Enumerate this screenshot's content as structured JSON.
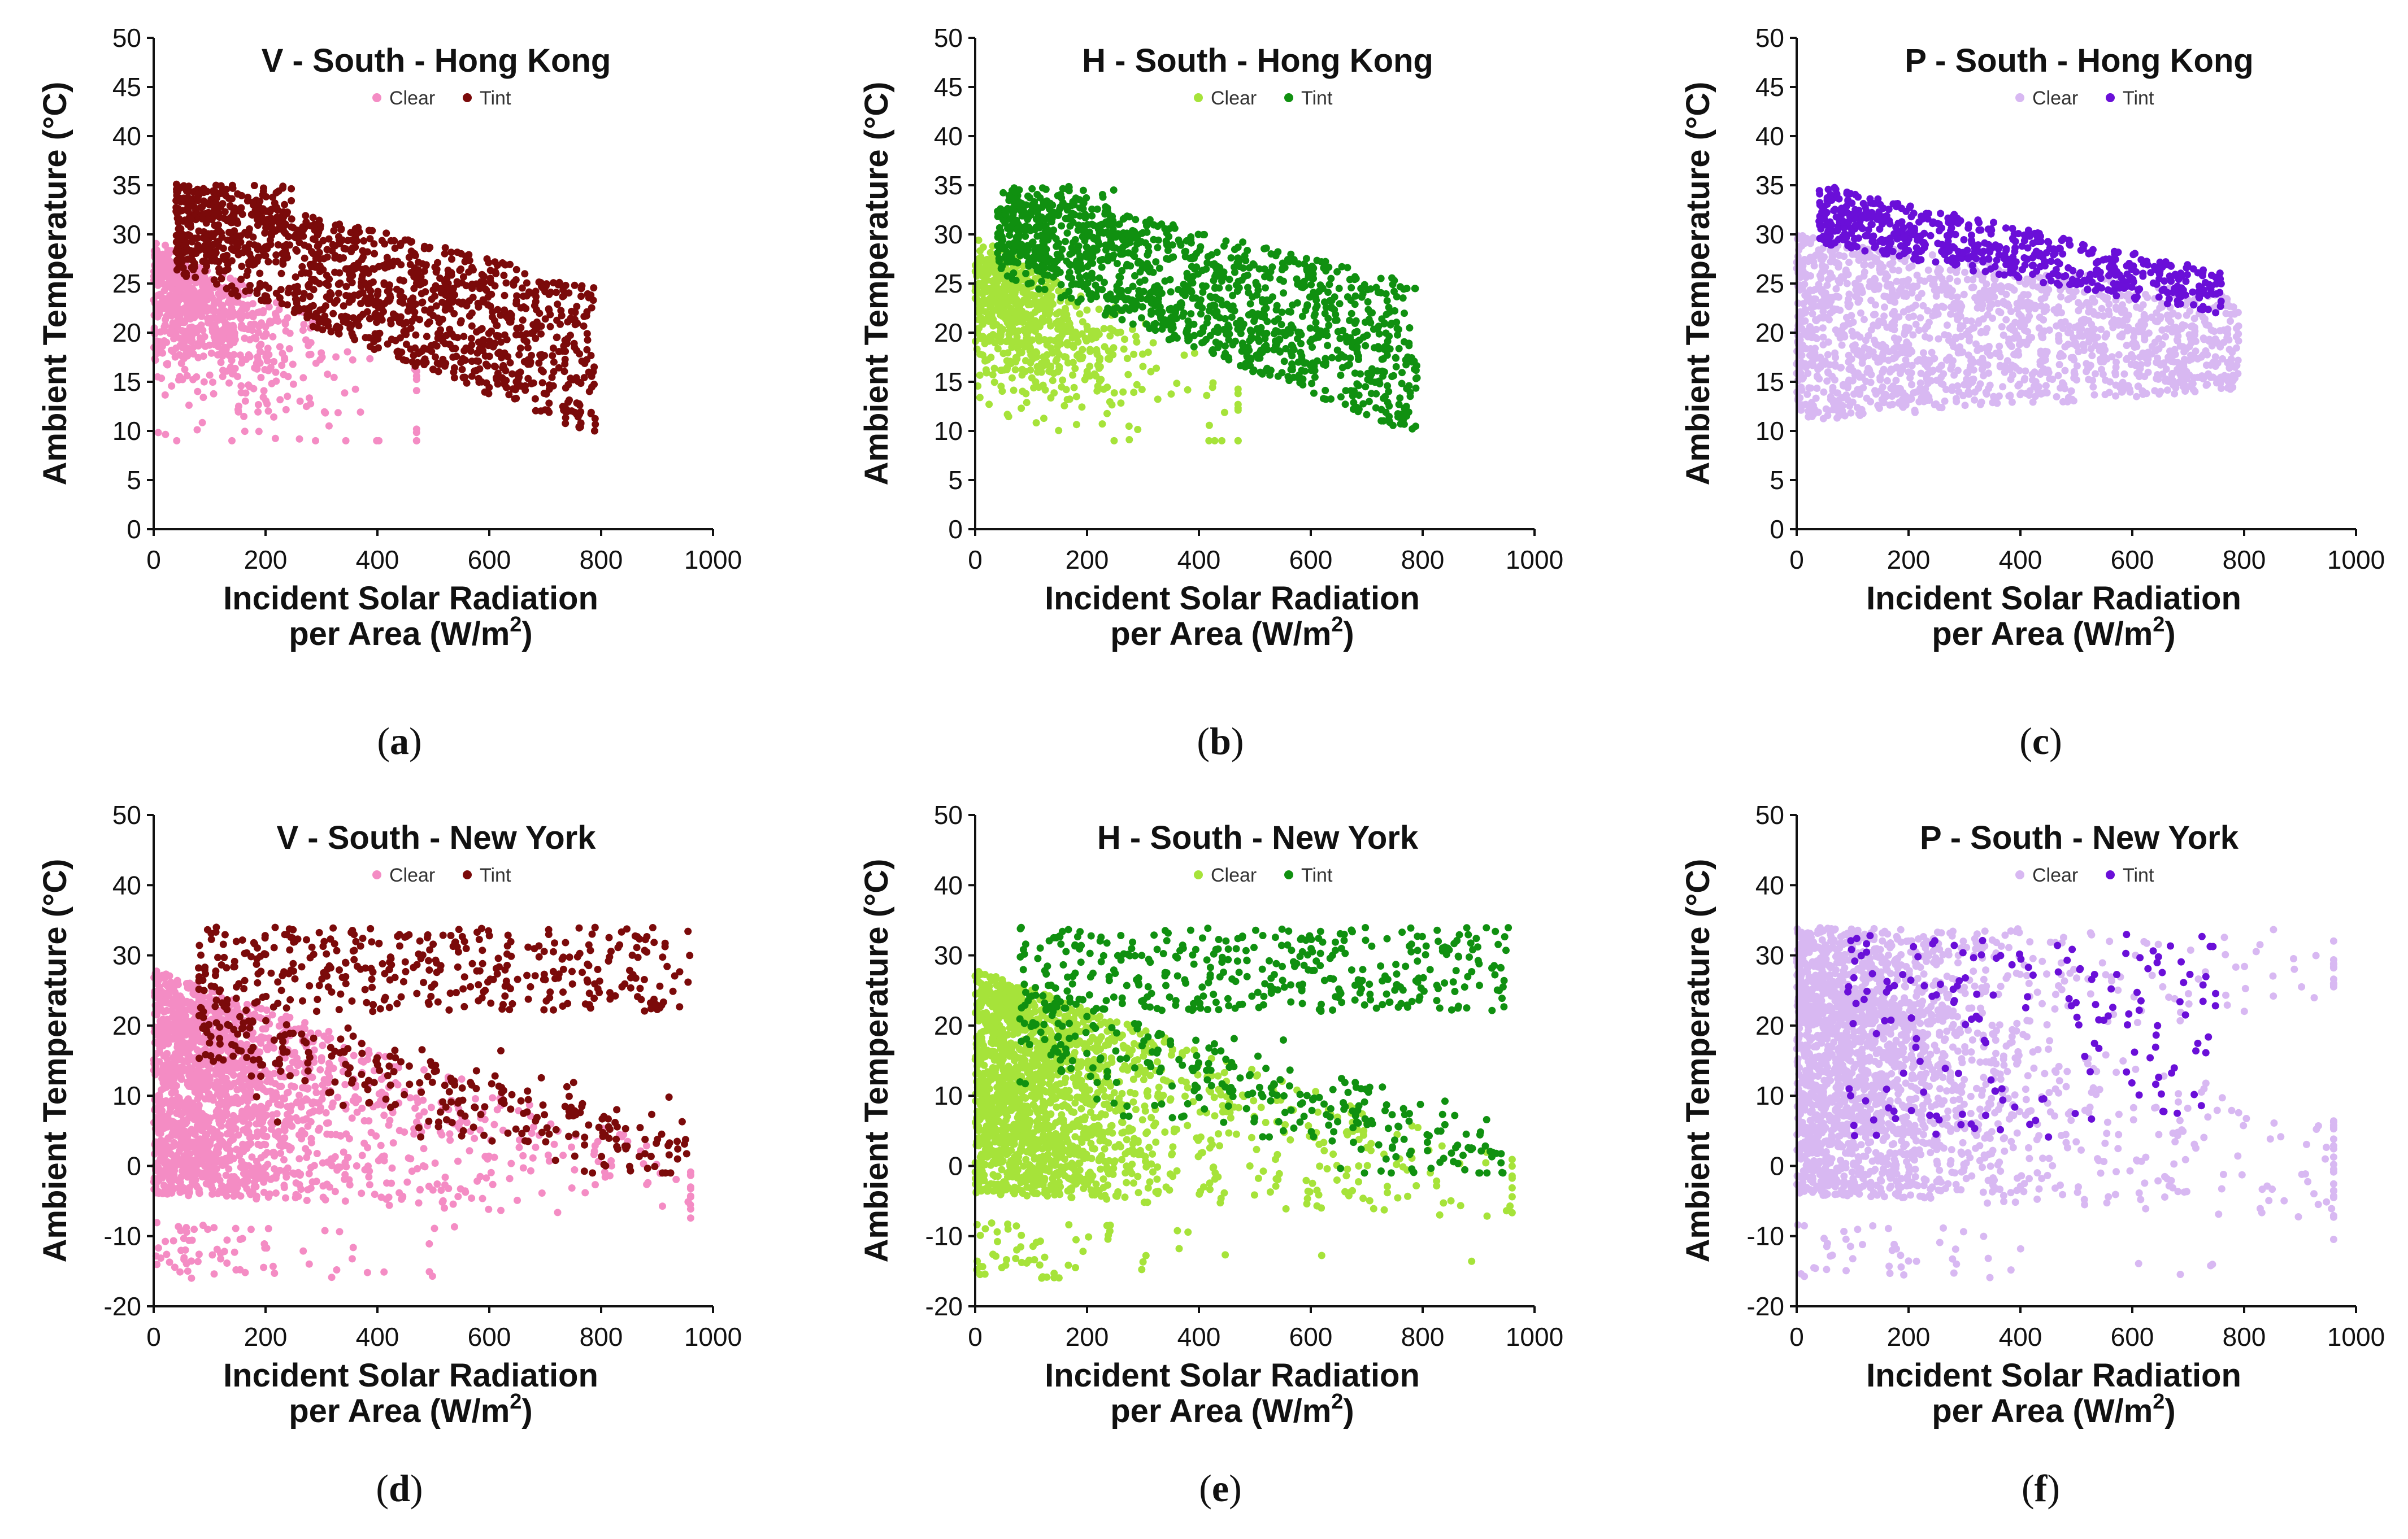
{
  "chart_data": [
    {
      "panel": "a",
      "type": "scatter",
      "title": "V - South - Hong Kong",
      "xlabel_line1": "Incident Solar Radiation",
      "xlabel_line2": "per Area (W/m",
      "xlabel_sup": "2",
      "xlabel_close": ")",
      "ylabel": "Ambient Temperature (°C)",
      "xlim": [
        0,
        1000
      ],
      "ylim": [
        0,
        50
      ],
      "xticks": [
        0,
        200,
        400,
        600,
        800,
        1000
      ],
      "yticks": [
        0,
        5,
        10,
        15,
        20,
        25,
        30,
        35,
        40,
        45,
        50
      ],
      "legend": [
        "Clear",
        "Tint"
      ],
      "series": [
        {
          "name": "Clear",
          "color": "#f48cc4",
          "n": 700,
          "xrange": [
            0,
            470
          ],
          "yrange": [
            9,
            30
          ],
          "pattern": "hk_clear"
        },
        {
          "name": "Tint",
          "color": "#7b0a0a",
          "n": 1300,
          "xrange": [
            40,
            790
          ],
          "yrange": [
            10,
            35.5
          ],
          "pattern": "hk_tint"
        }
      ]
    },
    {
      "panel": "b",
      "type": "scatter",
      "title": "H - South - Hong Kong",
      "xlabel_line1": "Incident Solar Radiation",
      "xlabel_line2": "per Area (W/m",
      "xlabel_sup": "2",
      "xlabel_close": ")",
      "ylabel": "Ambient Temperature (°C)",
      "xlim": [
        0,
        1000
      ],
      "ylim": [
        0,
        50
      ],
      "xticks": [
        0,
        200,
        400,
        600,
        800,
        1000
      ],
      "yticks": [
        0,
        5,
        10,
        15,
        20,
        25,
        30,
        35,
        40,
        45,
        50
      ],
      "legend": [
        "Clear",
        "Tint"
      ],
      "series": [
        {
          "name": "Clear",
          "color": "#a6e33a",
          "n": 700,
          "xrange": [
            0,
            470
          ],
          "yrange": [
            9,
            30
          ],
          "pattern": "hk_clear"
        },
        {
          "name": "Tint",
          "color": "#109010",
          "n": 1300,
          "xrange": [
            40,
            790
          ],
          "yrange": [
            10,
            35.5
          ],
          "pattern": "hk_tint"
        }
      ]
    },
    {
      "panel": "c",
      "type": "scatter",
      "title": "P - South - Hong Kong",
      "xlabel_line1": "Incident Solar Radiation",
      "xlabel_line2": "per Area (W/m",
      "xlabel_sup": "2",
      "xlabel_close": ")",
      "ylabel": "Ambient Temperature (°C)",
      "xlim": [
        0,
        1000
      ],
      "ylim": [
        0,
        50
      ],
      "xticks": [
        0,
        200,
        400,
        600,
        800,
        1000
      ],
      "yticks": [
        0,
        5,
        10,
        15,
        20,
        25,
        30,
        35,
        40,
        45,
        50
      ],
      "legend": [
        "Clear",
        "Tint"
      ],
      "series": [
        {
          "name": "Clear",
          "color": "#d8b8f2",
          "n": 1600,
          "xrange": [
            0,
            790
          ],
          "yrange": [
            9,
            30
          ],
          "pattern": "hk_clear_wide"
        },
        {
          "name": "Tint",
          "color": "#6a0fd8",
          "n": 600,
          "xrange": [
            40,
            760
          ],
          "yrange": [
            22,
            35.5
          ],
          "pattern": "hk_tint_top"
        }
      ]
    },
    {
      "panel": "d",
      "type": "scatter",
      "title": "V - South - New York",
      "xlabel_line1": "Incident Solar Radiation",
      "xlabel_line2": "per Area (W/m",
      "xlabel_sup": "2",
      "xlabel_close": ")",
      "ylabel": "Ambient Temperature (°C)",
      "xlim": [
        0,
        1000
      ],
      "ylim": [
        -20,
        50
      ],
      "xticks": [
        0,
        200,
        400,
        600,
        800,
        1000
      ],
      "yticks": [
        -20,
        -10,
        0,
        10,
        20,
        30,
        40,
        50
      ],
      "legend": [
        "Clear",
        "Tint"
      ],
      "series": [
        {
          "name": "Clear",
          "color": "#f48cc4",
          "n": 1900,
          "xrange": [
            0,
            960
          ],
          "yrange": [
            -16,
            30
          ],
          "pattern": "ny_clear"
        },
        {
          "name": "Tint",
          "color": "#7b0a0a",
          "n": 650,
          "xrange": [
            80,
            960
          ],
          "yrange": [
            -1,
            34.5
          ],
          "pattern": "ny_tint"
        }
      ]
    },
    {
      "panel": "e",
      "type": "scatter",
      "title": "H - South - New York",
      "xlabel_line1": "Incident Solar Radiation",
      "xlabel_line2": "per Area (W/m",
      "xlabel_sup": "2",
      "xlabel_close": ")",
      "ylabel": "Ambient Temperature (°C)",
      "xlim": [
        0,
        1000
      ],
      "ylim": [
        -20,
        50
      ],
      "xticks": [
        0,
        200,
        400,
        600,
        800,
        1000
      ],
      "yticks": [
        -20,
        -10,
        0,
        10,
        20,
        30,
        40,
        50
      ],
      "legend": [
        "Clear",
        "Tint"
      ],
      "series": [
        {
          "name": "Clear",
          "color": "#a6e33a",
          "n": 1900,
          "xrange": [
            0,
            960
          ],
          "yrange": [
            -16,
            30
          ],
          "pattern": "ny_clear"
        },
        {
          "name": "Tint",
          "color": "#109010",
          "n": 650,
          "xrange": [
            80,
            960
          ],
          "yrange": [
            -1,
            34.5
          ],
          "pattern": "ny_tint"
        }
      ]
    },
    {
      "panel": "f",
      "type": "scatter",
      "title": "P - South - New York",
      "xlabel_line1": "Incident Solar Radiation",
      "xlabel_line2": "per Area (W/m",
      "xlabel_sup": "2",
      "xlabel_close": ")",
      "ylabel": "Ambient Temperature (°C)",
      "xlim": [
        0,
        1000
      ],
      "ylim": [
        -20,
        50
      ],
      "xticks": [
        0,
        200,
        400,
        600,
        800,
        1000
      ],
      "yticks": [
        -20,
        -10,
        0,
        10,
        20,
        30,
        40,
        50
      ],
      "legend": [
        "Clear",
        "Tint"
      ],
      "series": [
        {
          "name": "Clear",
          "color": "#d8b8f2",
          "n": 2300,
          "xrange": [
            0,
            960
          ],
          "yrange": [
            -16,
            34.5
          ],
          "pattern": "ny_clear_all"
        },
        {
          "name": "Tint",
          "color": "#6a0fd8",
          "n": 180,
          "xrange": [
            90,
            760
          ],
          "yrange": [
            4,
            33
          ],
          "pattern": "ny_tint_p"
        }
      ]
    }
  ],
  "panel_labels": {
    "a": {
      "open": "(",
      "letter": "a",
      "close": ")"
    },
    "b": {
      "open": "(",
      "letter": "b",
      "close": ")"
    },
    "c": {
      "open": "(",
      "letter": "c",
      "close": ")"
    },
    "d": {
      "open": "(",
      "letter": "d",
      "close": ")"
    },
    "e": {
      "open": "(",
      "letter": "e",
      "close": ")"
    },
    "f": {
      "open": "(",
      "letter": "f",
      "close": ")"
    }
  }
}
